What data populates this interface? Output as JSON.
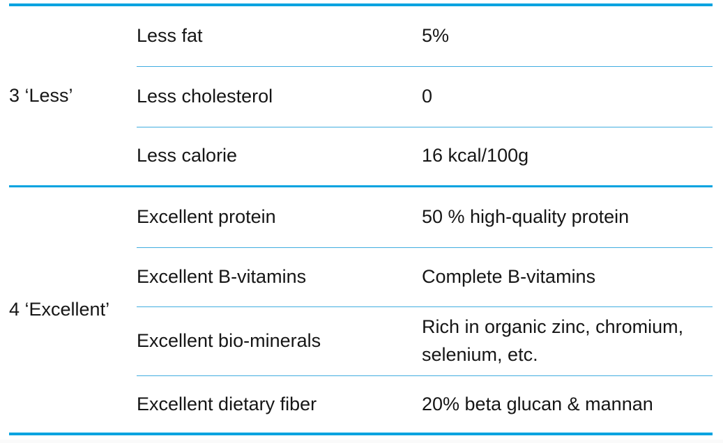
{
  "table": {
    "description": "Nutrition claims table",
    "columns": [
      "group",
      "attribute",
      "value"
    ],
    "groups": [
      {
        "label": "3 ‘Less’",
        "rows": [
          {
            "attribute": "Less fat",
            "value": "5%"
          },
          {
            "attribute": "Less cholesterol",
            "value": "0"
          },
          {
            "attribute": "Less calorie",
            "value": "16 kcal/100g"
          }
        ]
      },
      {
        "label": "4 ‘Excellent’",
        "rows": [
          {
            "attribute": "Excellent protein",
            "value": "50 % high-quality protein"
          },
          {
            "attribute": "Excellent B-vitamins",
            "value": "Complete B-vitamins"
          },
          {
            "attribute": "Excellent bio-minerals",
            "value": "Rich in organic zinc, chromium, selenium, etc."
          },
          {
            "attribute": "Excellent dietary fiber",
            "value": "20% beta glucan & mannan"
          }
        ]
      }
    ],
    "colors": {
      "thick_rule": "#00A3E0",
      "thin_rule": "#41ADE0",
      "text": "#161616",
      "background": "#FFFFFF"
    }
  }
}
